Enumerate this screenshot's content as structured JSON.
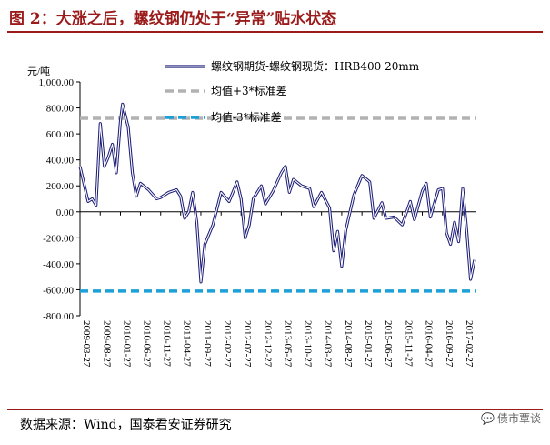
{
  "header": {
    "title": "图 2：大涨之后，螺纹钢仍处于“异常”贴水状态"
  },
  "footer": {
    "source": "数据来源：Wind，国泰君安证券研究",
    "watermark": "债市覃谈"
  },
  "chart_data": {
    "type": "line",
    "title": "",
    "ylabel": "元/吨",
    "xlabel": "",
    "ylim": [
      -800,
      1000
    ],
    "yticks": [
      1000,
      800,
      600,
      400,
      200,
      0,
      -200,
      -400,
      -600,
      -800
    ],
    "ytick_labels": [
      "1,000.00",
      "800.00",
      "600.00",
      "400.00",
      "200.00",
      "0.00",
      "-200.00",
      "-400.00",
      "-600.00",
      "-800.00"
    ],
    "xtick_labels": [
      "2009-03-27",
      "2009-08-27",
      "2010-01-27",
      "2010-06-27",
      "2010-11-27",
      "2011-04-27",
      "2011-09-27",
      "2012-02-27",
      "2012-07-27",
      "2012-12-27",
      "2013-05-27",
      "2013-10-27",
      "2014-03-27",
      "2014-08-27",
      "2015-01-27",
      "2015-06-27",
      "2015-11-27",
      "2016-04-27",
      "2016-09-27",
      "2017-02-27"
    ],
    "legend_position": "top-right",
    "series": [
      {
        "name": "螺纹钢期货-螺纹钢现货：HRB400 20mm",
        "color": "#1f1f7a",
        "style": "double-line",
        "x": [
          "2009-03-27",
          "2009-05-27",
          "2009-06-27",
          "2009-07-27",
          "2009-08-27",
          "2009-09-27",
          "2009-10-27",
          "2009-11-27",
          "2009-12-27",
          "2010-01-27",
          "2010-02-12",
          "2010-03-27",
          "2010-04-27",
          "2010-05-27",
          "2010-06-27",
          "2010-08-27",
          "2010-10-27",
          "2010-11-27",
          "2011-01-27",
          "2011-03-27",
          "2011-04-27",
          "2011-05-27",
          "2011-06-27",
          "2011-07-27",
          "2011-08-27",
          "2011-09-27",
          "2011-10-27",
          "2011-12-27",
          "2012-02-27",
          "2012-04-27",
          "2012-06-27",
          "2012-07-27",
          "2012-08-27",
          "2012-09-27",
          "2012-10-27",
          "2012-12-27",
          "2013-01-27",
          "2013-03-27",
          "2013-05-27",
          "2013-06-27",
          "2013-07-27",
          "2013-08-27",
          "2013-10-27",
          "2013-12-27",
          "2014-01-27",
          "2014-03-27",
          "2014-05-27",
          "2014-06-27",
          "2014-07-27",
          "2014-08-27",
          "2014-09-27",
          "2014-11-27",
          "2015-01-27",
          "2015-03-27",
          "2015-04-27",
          "2015-06-27",
          "2015-07-27",
          "2015-09-27",
          "2015-11-27",
          "2016-01-27",
          "2016-02-27",
          "2016-04-27",
          "2016-05-27",
          "2016-06-27",
          "2016-08-27",
          "2016-09-27",
          "2016-10-27",
          "2016-11-27",
          "2016-12-27",
          "2017-01-27",
          "2017-02-27",
          "2017-03-27",
          "2017-04-27",
          "2017-05-27"
        ],
        "values": [
          350,
          80,
          100,
          50,
          680,
          350,
          420,
          520,
          300,
          700,
          830,
          650,
          300,
          120,
          220,
          170,
          100,
          110,
          150,
          170,
          120,
          -50,
          0,
          150,
          -80,
          -540,
          -250,
          -100,
          150,
          80,
          230,
          100,
          -200,
          -100,
          100,
          200,
          60,
          160,
          300,
          350,
          150,
          250,
          200,
          180,
          40,
          150,
          30,
          -300,
          -150,
          -420,
          -140,
          130,
          280,
          230,
          -50,
          70,
          -50,
          -40,
          -100,
          80,
          -60,
          160,
          220,
          -40,
          170,
          180,
          -160,
          -250,
          -80,
          -230,
          180,
          -120,
          -520,
          -370
        ]
      },
      {
        "name": "均值+3*标准差",
        "color": "#b2b2b2",
        "style": "dashed",
        "value": 720
      },
      {
        "name": "均值-3*标准差",
        "color": "#1da0d8",
        "style": "dashed",
        "value": -610
      }
    ]
  }
}
